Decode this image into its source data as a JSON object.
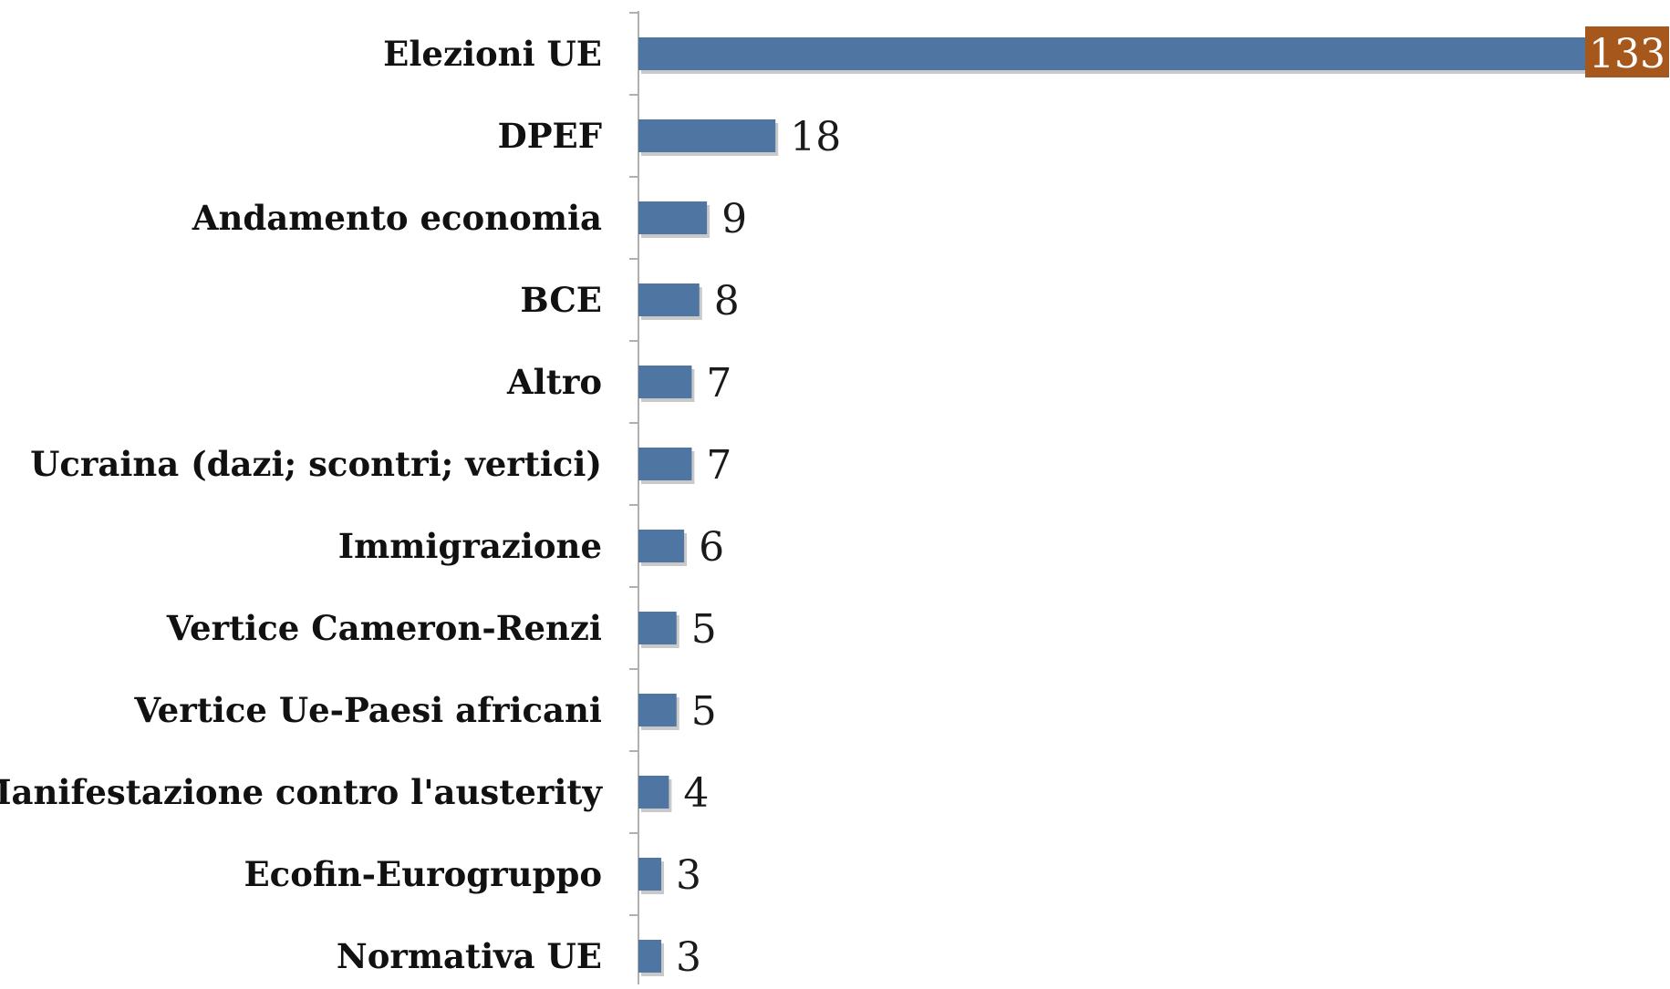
{
  "chart_data": {
    "type": "bar",
    "orientation": "horizontal",
    "categories": [
      "Elezioni UE",
      "DPEF",
      "Andamento economia",
      "BCE",
      "Altro",
      "Ucraina (dazi; scontri; vertici)",
      "Immigrazione",
      "Vertice Cameron-Renzi",
      "Vertice Ue-Paesi africani",
      "Manifestazione contro l'austerity",
      "Ecofin-Eurogruppo",
      "Normativa UE"
    ],
    "values": [
      133,
      18,
      9,
      8,
      7,
      7,
      6,
      5,
      5,
      4,
      3,
      3
    ],
    "value_labels": [
      "133",
      "18",
      "9",
      "8",
      "7",
      "7",
      "6",
      "5",
      "5",
      "4",
      "3",
      "3"
    ],
    "title": "",
    "xlabel": "",
    "ylabel": "",
    "xlim": [
      0,
      133
    ],
    "grid": false,
    "legend": "none",
    "colors": {
      "bar": "#4f76a3",
      "bar_shadow": "#c9c9c9",
      "highlight_label_bg": "#a5571c",
      "highlight_label_text": "#ffffff",
      "axis": "#b0b0b0"
    }
  }
}
